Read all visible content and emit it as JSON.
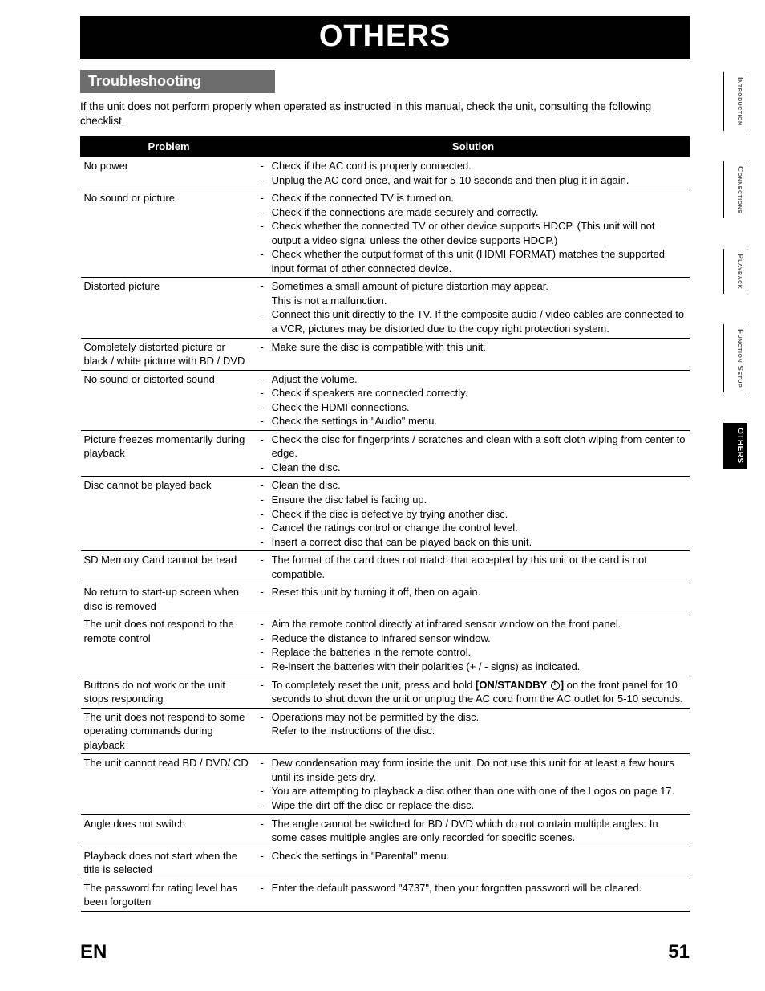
{
  "banner_title": "OTHERS",
  "section_title": "Troubleshooting",
  "intro_text": "If the unit does not perform properly when operated as instructed in this manual, check the unit, consulting the following checklist.",
  "table": {
    "headers": [
      "Problem",
      "Solution"
    ],
    "rows": [
      {
        "problem": "No power",
        "solutions": [
          "Check if the AC cord is properly connected.",
          "Unplug the AC cord once, and wait for 5-10 seconds and then plug it in again."
        ]
      },
      {
        "problem": "No sound or picture",
        "solutions": [
          "Check if the connected TV is turned on.",
          "Check if the connections are made securely and correctly.",
          "Check whether the connected TV or other device supports HDCP. (This unit will not output a video signal unless the other device supports HDCP.)",
          "Check whether the output format of this unit (HDMI FORMAT) matches the supported input format of other connected device."
        ]
      },
      {
        "problem": "Distorted picture",
        "solutions": [
          "Sometimes a small amount of picture distortion may appear.\nThis is not a malfunction.",
          "Connect this unit directly to the TV. If the composite audio / video cables are connected to a VCR, pictures may be distorted due to the copy right protection system."
        ]
      },
      {
        "problem": "Completely distorted picture or black / white picture with BD / DVD",
        "solutions": [
          "Make sure the disc is compatible with this unit."
        ]
      },
      {
        "problem": "No sound or distorted sound",
        "solutions": [
          "Adjust the volume.",
          "Check if speakers are connected correctly.",
          "Check the HDMI connections.",
          "Check the settings in \"Audio\" menu."
        ]
      },
      {
        "problem": "Picture freezes momentarily during playback",
        "solutions": [
          "Check the disc for fingerprints / scratches and clean with a soft cloth wiping from center to edge.",
          "Clean the disc."
        ]
      },
      {
        "problem": "Disc cannot be played back",
        "solutions": [
          "Clean the disc.",
          "Ensure the disc label is facing up.",
          "Check if the disc is defective by trying another disc.",
          "Cancel the ratings control or change the control level.",
          "Insert a correct disc that can be played back on this unit."
        ]
      },
      {
        "problem": "SD Memory Card cannot be read",
        "solutions": [
          "The format of the card does not match that accepted by this unit or the card is not compatible."
        ]
      },
      {
        "problem": "No return to start-up screen when disc is removed",
        "solutions": [
          "Reset this unit by turning it off, then on again."
        ]
      },
      {
        "problem": "The unit does not respond to the remote control",
        "solutions": [
          "Aim the remote control directly at infrared sensor window on the front panel.",
          "Reduce the distance to infrared sensor window.",
          "Replace the batteries in the remote control.",
          "Re-insert the batteries with their polarities (+ / - signs) as indicated."
        ]
      },
      {
        "problem": "Buttons do not work or the unit stops responding",
        "solutions_html": [
          "To completely reset the unit, press and hold <b>[ON/STANDBY <span class=\"power-icon\" data-name=\"power-icon\" data-interactable=\"false\"></span>]</b> on the front panel for 10 seconds to shut down the unit or unplug the AC cord from the AC outlet for 5-10 seconds."
        ]
      },
      {
        "problem": "The unit does not respond to some operating commands during playback",
        "solutions": [
          "Operations may not be permitted by the disc.\nRefer to the instructions of the disc."
        ]
      },
      {
        "problem": "The unit cannot read BD / DVD/ CD",
        "solutions": [
          "Dew condensation may form inside the unit. Do not use this unit for at least a few hours until its inside gets dry.",
          "You are attempting to playback a disc other than one with one of the Logos on page 17.",
          "Wipe the dirt off the disc or replace the disc."
        ]
      },
      {
        "problem": "Angle does not switch",
        "solutions": [
          "The angle cannot be switched for BD / DVD which do not contain multiple angles. In some cases multiple angles are only recorded for specific scenes."
        ]
      },
      {
        "problem": "Playback does not start when the title is selected",
        "solutions": [
          "Check the settings in \"Parental\" menu."
        ]
      },
      {
        "problem": "The password for rating level has been forgotten",
        "solutions": [
          "Enter the default password \"4737\", then your forgotten password will be cleared."
        ]
      }
    ]
  },
  "side_tabs": [
    {
      "label": "Introduction",
      "active": false
    },
    {
      "label": "Connections",
      "active": false
    },
    {
      "label": "Playback",
      "active": false
    },
    {
      "label": "Function Setup",
      "active": false
    },
    {
      "label": "OTHERS",
      "active": true
    }
  ],
  "footer": {
    "lang": "EN",
    "page_number": "51"
  },
  "colors": {
    "black": "#000000",
    "white": "#ffffff",
    "section_bar_bg": "#6d6d6d",
    "tab_inactive_text": "#555555"
  }
}
